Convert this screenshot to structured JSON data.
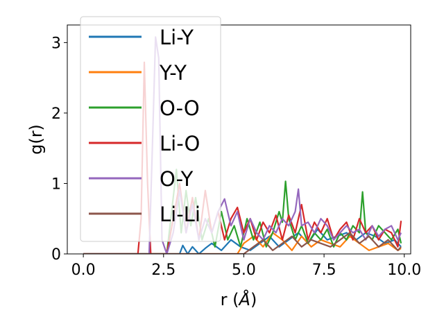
{
  "chart_data": {
    "type": "line",
    "xlabel_main": "r (",
    "xlabel_unit": "Å",
    "xlabel_close": ")",
    "ylabel": "g(r)",
    "xlim": [
      -0.5,
      10.2
    ],
    "ylim": [
      0,
      3.25
    ],
    "xticks": [
      0.0,
      2.5,
      5.0,
      7.5,
      10.0
    ],
    "xtick_labels": [
      "0.0",
      "2.5",
      "5.0",
      "7.5",
      "10.0"
    ],
    "yticks": [
      0,
      1,
      2,
      3
    ],
    "ytick_labels": [
      "0",
      "1",
      "2",
      "3"
    ],
    "grid": false,
    "legend_position": "upper-left",
    "series": [
      {
        "name": "Li-Y",
        "color": "#1f77b4",
        "x": [
          0.0,
          3.0,
          3.1,
          3.25,
          3.4,
          3.6,
          3.8,
          4.0,
          4.3,
          4.6,
          4.9,
          5.2,
          5.5,
          5.8,
          6.1,
          6.4,
          6.7,
          7.0,
          7.3,
          7.6,
          7.9,
          8.2,
          8.5,
          8.8,
          9.1,
          9.4,
          9.7,
          9.9
        ],
        "y": [
          0.0,
          0.0,
          0.12,
          0.0,
          0.1,
          0.0,
          0.08,
          0.15,
          0.05,
          0.2,
          0.1,
          0.05,
          0.15,
          0.25,
          0.1,
          0.2,
          0.3,
          0.15,
          0.35,
          0.2,
          0.25,
          0.3,
          0.2,
          0.3,
          0.25,
          0.15,
          0.2,
          0.1
        ]
      },
      {
        "name": "Y-Y",
        "color": "#ff7f0e",
        "x": [
          0.0,
          4.8,
          5.0,
          5.3,
          5.6,
          5.9,
          6.2,
          6.5,
          6.8,
          7.1,
          7.4,
          7.7,
          8.0,
          8.3,
          8.6,
          8.9,
          9.2,
          9.5,
          9.8,
          9.9
        ],
        "y": [
          0.0,
          0.0,
          0.15,
          0.25,
          0.1,
          0.3,
          0.2,
          0.05,
          0.25,
          0.1,
          0.2,
          0.15,
          0.1,
          0.25,
          0.15,
          0.05,
          0.1,
          0.15,
          0.05,
          0.08
        ]
      },
      {
        "name": "O-O",
        "color": "#2ca02c",
        "x": [
          0.0,
          2.6,
          2.75,
          2.9,
          3.05,
          3.2,
          3.35,
          3.5,
          3.7,
          3.9,
          4.1,
          4.3,
          4.5,
          4.7,
          4.9,
          5.0,
          5.1,
          5.3,
          5.5,
          5.7,
          5.9,
          6.1,
          6.2,
          6.3,
          6.4,
          6.6,
          6.8,
          7.0,
          7.2,
          7.4,
          7.6,
          7.8,
          8.0,
          8.2,
          8.4,
          8.6,
          8.7,
          8.8,
          9.0,
          9.2,
          9.4,
          9.6,
          9.8,
          9.9
        ],
        "y": [
          0.0,
          0.0,
          0.6,
          1.2,
          0.3,
          0.9,
          0.4,
          0.8,
          0.2,
          0.5,
          0.1,
          0.6,
          0.2,
          0.4,
          0.1,
          0.3,
          0.5,
          0.2,
          0.45,
          0.1,
          0.3,
          0.6,
          0.45,
          1.03,
          0.5,
          0.2,
          0.4,
          0.15,
          0.3,
          0.2,
          0.35,
          0.1,
          0.3,
          0.2,
          0.4,
          0.3,
          0.88,
          0.3,
          0.2,
          0.4,
          0.3,
          0.2,
          0.35,
          0.15
        ]
      },
      {
        "name": "Li-O",
        "color": "#d62728",
        "x": [
          0.0,
          1.7,
          1.8,
          1.9,
          2.0,
          2.1,
          2.2,
          2.6,
          2.8,
          3.0,
          3.2,
          3.4,
          3.6,
          3.8,
          4.0,
          4.2,
          4.4,
          4.6,
          4.8,
          5.0,
          5.2,
          5.4,
          5.6,
          5.8,
          6.0,
          6.2,
          6.4,
          6.6,
          6.8,
          7.0,
          7.2,
          7.4,
          7.6,
          7.8,
          8.0,
          8.2,
          8.4,
          8.6,
          8.8,
          9.0,
          9.2,
          9.4,
          9.6,
          9.8,
          9.9
        ],
        "y": [
          0.0,
          0.0,
          0.5,
          2.72,
          1.0,
          0.0,
          0.0,
          0.0,
          0.5,
          1.0,
          0.3,
          0.8,
          0.2,
          0.9,
          0.3,
          0.6,
          0.2,
          0.5,
          0.66,
          0.3,
          0.5,
          0.2,
          0.45,
          0.3,
          0.55,
          0.2,
          0.55,
          0.3,
          0.7,
          0.2,
          0.45,
          0.3,
          0.5,
          0.2,
          0.35,
          0.45,
          0.2,
          0.5,
          0.3,
          0.4,
          0.2,
          0.35,
          0.3,
          0.1,
          0.47
        ]
      },
      {
        "name": "O-Y",
        "color": "#9467bd",
        "x": [
          0.0,
          2.05,
          2.15,
          2.25,
          2.35,
          2.45,
          2.6,
          2.8,
          3.0,
          3.2,
          3.4,
          3.6,
          3.8,
          4.0,
          4.2,
          4.4,
          4.6,
          4.8,
          5.0,
          5.2,
          5.4,
          5.6,
          5.8,
          6.0,
          6.2,
          6.4,
          6.6,
          6.7,
          6.8,
          7.0,
          7.2,
          7.4,
          7.6,
          7.8,
          8.0,
          8.2,
          8.4,
          8.6,
          8.8,
          9.0,
          9.2,
          9.4,
          9.6,
          9.8,
          9.9
        ],
        "y": [
          0.0,
          0.0,
          1.5,
          3.08,
          2.78,
          0.2,
          0.0,
          0.3,
          0.9,
          0.3,
          0.7,
          0.2,
          0.5,
          0.3,
          0.6,
          0.78,
          0.4,
          0.6,
          0.2,
          0.5,
          0.3,
          0.2,
          0.4,
          0.3,
          0.5,
          0.4,
          0.6,
          0.92,
          0.4,
          0.45,
          0.3,
          0.5,
          0.4,
          0.2,
          0.3,
          0.4,
          0.3,
          0.35,
          0.2,
          0.4,
          0.25,
          0.35,
          0.4,
          0.2,
          0.3
        ]
      },
      {
        "name": "Li-Li",
        "color": "#8c564b",
        "x": [
          0.0,
          5.0,
          5.3,
          5.6,
          5.9,
          6.2,
          6.5,
          6.8,
          7.1,
          7.4,
          7.7,
          8.0,
          8.3,
          8.6,
          8.9,
          9.2,
          9.5,
          9.8,
          9.9
        ],
        "y": [
          0.0,
          0.0,
          0.1,
          0.2,
          0.05,
          0.15,
          0.25,
          0.1,
          0.2,
          0.15,
          0.1,
          0.2,
          0.3,
          0.15,
          0.25,
          0.1,
          0.2,
          0.05,
          0.1
        ]
      }
    ]
  }
}
